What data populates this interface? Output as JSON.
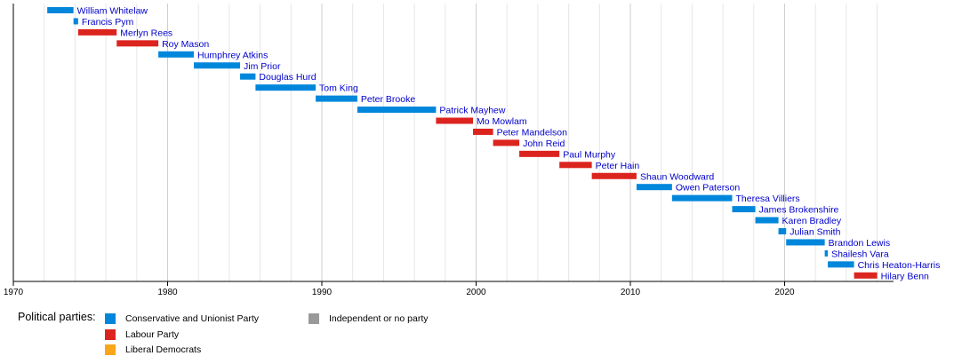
{
  "chart_data": {
    "type": "bar",
    "x_ticks": [
      1970,
      1980,
      1990,
      2000,
      2010,
      2020
    ],
    "xlim": [
      1970,
      2027
    ],
    "minor_grid_step": 2,
    "grid": true,
    "parties": [
      {
        "key": "con",
        "name": "Conservative and Unionist Party",
        "color": "#0087dc"
      },
      {
        "key": "lab",
        "name": "Labour Party",
        "color": "#dc241f"
      },
      {
        "key": "lib",
        "name": "Liberal Democrats",
        "color": "#faa61a"
      },
      {
        "key": "ind",
        "name": "Independent or no party",
        "color": "#999999"
      }
    ],
    "officeholders": [
      {
        "name": "William Whitelaw",
        "start": 1972.2,
        "end": 1973.9,
        "party": "con"
      },
      {
        "name": "Francis Pym",
        "start": 1973.9,
        "end": 1974.2,
        "party": "con"
      },
      {
        "name": "Merlyn Rees",
        "start": 1974.2,
        "end": 1976.7,
        "party": "lab"
      },
      {
        "name": "Roy Mason",
        "start": 1976.7,
        "end": 1979.4,
        "party": "lab"
      },
      {
        "name": "Humphrey Atkins",
        "start": 1979.4,
        "end": 1981.7,
        "party": "con"
      },
      {
        "name": "Jim Prior",
        "start": 1981.7,
        "end": 1984.7,
        "party": "con"
      },
      {
        "name": "Douglas Hurd",
        "start": 1984.7,
        "end": 1985.7,
        "party": "con"
      },
      {
        "name": "Tom King",
        "start": 1985.7,
        "end": 1989.6,
        "party": "con"
      },
      {
        "name": "Peter Brooke",
        "start": 1989.6,
        "end": 1992.3,
        "party": "con"
      },
      {
        "name": "Patrick Mayhew",
        "start": 1992.3,
        "end": 1997.4,
        "party": "con"
      },
      {
        "name": "Mo Mowlam",
        "start": 1997.4,
        "end": 1999.8,
        "party": "lab"
      },
      {
        "name": "Peter Mandelson",
        "start": 1999.8,
        "end": 2001.1,
        "party": "lab"
      },
      {
        "name": "John Reid",
        "start": 2001.1,
        "end": 2002.8,
        "party": "lab"
      },
      {
        "name": "Paul Murphy",
        "start": 2002.8,
        "end": 2005.4,
        "party": "lab"
      },
      {
        "name": "Peter Hain",
        "start": 2005.4,
        "end": 2007.5,
        "party": "lab"
      },
      {
        "name": "Shaun Woodward",
        "start": 2007.5,
        "end": 2010.4,
        "party": "lab"
      },
      {
        "name": "Owen Paterson",
        "start": 2010.4,
        "end": 2012.7,
        "party": "con"
      },
      {
        "name": "Theresa Villiers",
        "start": 2012.7,
        "end": 2016.6,
        "party": "con"
      },
      {
        "name": "James Brokenshire",
        "start": 2016.6,
        "end": 2018.1,
        "party": "con"
      },
      {
        "name": "Karen Bradley",
        "start": 2018.1,
        "end": 2019.6,
        "party": "con"
      },
      {
        "name": "Julian Smith",
        "start": 2019.6,
        "end": 2020.1,
        "party": "con"
      },
      {
        "name": "Brandon Lewis",
        "start": 2020.1,
        "end": 2022.6,
        "party": "con"
      },
      {
        "name": "Shailesh Vara",
        "start": 2022.6,
        "end": 2022.8,
        "party": "con"
      },
      {
        "name": "Chris Heaton-Harris",
        "start": 2022.8,
        "end": 2024.5,
        "party": "con"
      },
      {
        "name": "Hilary Benn",
        "start": 2024.5,
        "end": 2026.0,
        "party": "lab"
      }
    ]
  },
  "legend": {
    "title": "Political parties:"
  }
}
